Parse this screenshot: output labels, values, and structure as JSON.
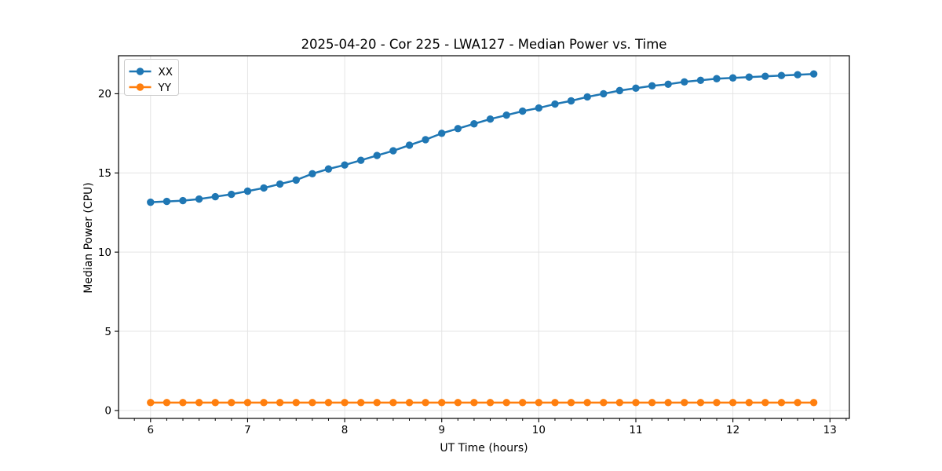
{
  "title": "2025-04-20 - Cor 225 - LWA127 - Median Power vs. Time",
  "colors": {
    "series_xx": "#1f77b4",
    "series_yy": "#ff7f0e",
    "grid": "#e4e4e4",
    "spine": "#000000",
    "legend_border": "#cccccc",
    "background": "#ffffff"
  },
  "chart_data": {
    "type": "line",
    "title": "2025-04-20 - Cor 225 - LWA127 - Median Power vs. Time",
    "xlabel": "UT Time (hours)",
    "ylabel": "Median Power (CPU)",
    "xlim": [
      5.67,
      13.2
    ],
    "ylim": [
      -0.5,
      22.4
    ],
    "xticks": [
      6,
      7,
      8,
      9,
      10,
      11,
      12,
      13
    ],
    "yticks": [
      0,
      5,
      10,
      15,
      20
    ],
    "x_minor_step": 0.1666667,
    "grid": true,
    "legend_position": "upper-left",
    "x": [
      6.0,
      6.167,
      6.333,
      6.5,
      6.667,
      6.833,
      7.0,
      7.167,
      7.333,
      7.5,
      7.667,
      7.833,
      8.0,
      8.167,
      8.333,
      8.5,
      8.667,
      8.833,
      9.0,
      9.167,
      9.333,
      9.5,
      9.667,
      9.833,
      10.0,
      10.167,
      10.333,
      10.5,
      10.667,
      10.833,
      11.0,
      11.167,
      11.333,
      11.5,
      11.667,
      11.833,
      12.0,
      12.167,
      12.333,
      12.5,
      12.667,
      12.833
    ],
    "series": [
      {
        "name": "XX",
        "color": "#1f77b4",
        "values": [
          13.15,
          13.2,
          13.25,
          13.35,
          13.5,
          13.65,
          13.85,
          14.05,
          14.3,
          14.55,
          14.95,
          15.25,
          15.5,
          15.8,
          16.1,
          16.4,
          16.75,
          17.1,
          17.5,
          17.8,
          18.1,
          18.4,
          18.65,
          18.9,
          19.1,
          19.35,
          19.55,
          19.8,
          20.0,
          20.2,
          20.35,
          20.5,
          20.6,
          20.75,
          20.85,
          20.95,
          21.0,
          21.05,
          21.1,
          21.15,
          21.2,
          21.25
        ]
      },
      {
        "name": "YY",
        "color": "#ff7f0e",
        "values": [
          0.5,
          0.5,
          0.5,
          0.5,
          0.5,
          0.5,
          0.5,
          0.5,
          0.5,
          0.5,
          0.5,
          0.5,
          0.5,
          0.5,
          0.5,
          0.5,
          0.5,
          0.5,
          0.5,
          0.5,
          0.5,
          0.5,
          0.5,
          0.5,
          0.5,
          0.5,
          0.5,
          0.5,
          0.5,
          0.5,
          0.5,
          0.5,
          0.5,
          0.5,
          0.5,
          0.5,
          0.5,
          0.5,
          0.5,
          0.5,
          0.5,
          0.5
        ]
      }
    ]
  }
}
